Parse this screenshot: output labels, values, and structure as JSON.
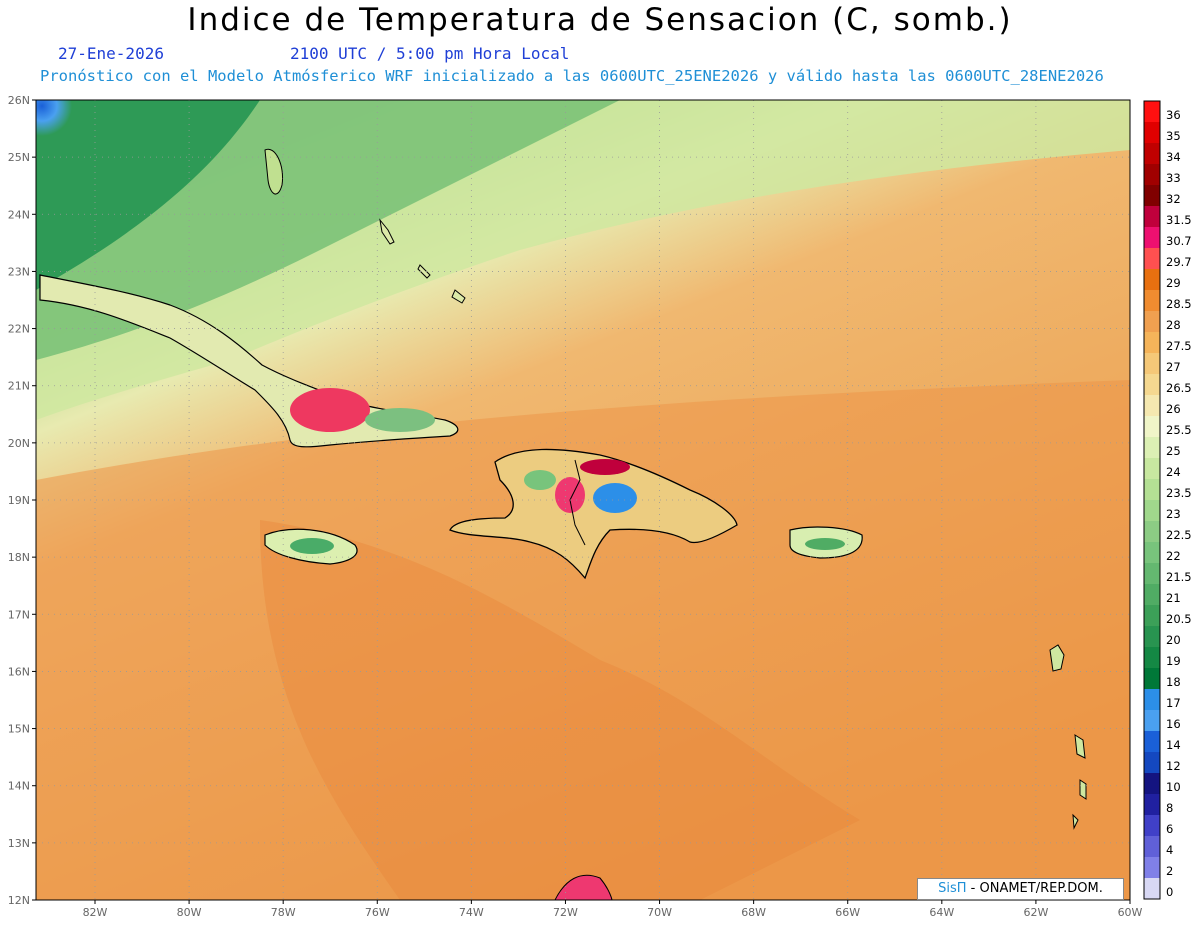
{
  "header": {
    "title": "Indice de Temperatura de Sensacion (C, somb.)",
    "date": "27-Ene-2026",
    "time": "2100 UTC / 5:00 pm Hora Local",
    "model_line": "Pronóstico con el Modelo Atmósferico WRF inicializado a las 0600UTC_25ENE2026 y válido hasta las  0600UTC_28ENE2026"
  },
  "axes": {
    "lat_labels": [
      "26N",
      "25N",
      "24N",
      "23N",
      "22N",
      "21N",
      "20N",
      "19N",
      "18N",
      "17N",
      "16N",
      "15N",
      "14N",
      "13N",
      "12N"
    ],
    "lon_labels": [
      "82W",
      "80W",
      "78W",
      "76W",
      "74W",
      "72W",
      "70W",
      "68W",
      "66W",
      "64W",
      "62W",
      "60W"
    ]
  },
  "colorbar": {
    "labels": [
      "36",
      "35",
      "34",
      "33",
      "32",
      "31.5",
      "30.7",
      "29.7",
      "29",
      "28.5",
      "28",
      "27.5",
      "27",
      "26.5",
      "26",
      "25.5",
      "25",
      "24",
      "23.5",
      "23",
      "22.5",
      "22",
      "21.5",
      "21",
      "20.5",
      "20",
      "19",
      "18",
      "17",
      "16",
      "14",
      "12",
      "10",
      "8",
      "6",
      "4",
      "2",
      "0"
    ],
    "colors": [
      "#ff1010",
      "#e00000",
      "#c00000",
      "#a00000",
      "#800000",
      "#c0003c",
      "#ee1070",
      "#ff5050",
      "#e87010",
      "#f08c30",
      "#f0a050",
      "#f5b45a",
      "#f5c878",
      "#f5d890",
      "#f5e8b0",
      "#f0f5c8",
      "#dcf0b4",
      "#c8e8a0",
      "#b4e094",
      "#a0d88c",
      "#8ccc84",
      "#78c47c",
      "#64b870",
      "#50ac64",
      "#3ca058",
      "#289450",
      "#148844",
      "#007838",
      "#2c8fe8",
      "#4aa0f0",
      "#1a60d8",
      "#1448c0",
      "#141480",
      "#2020a0",
      "#4040c8",
      "#6060d8",
      "#8080e8",
      "#d8d8f4"
    ]
  },
  "credit": {
    "brand": "SisΠ",
    "org": "- ONAMET/REP.DOM."
  }
}
